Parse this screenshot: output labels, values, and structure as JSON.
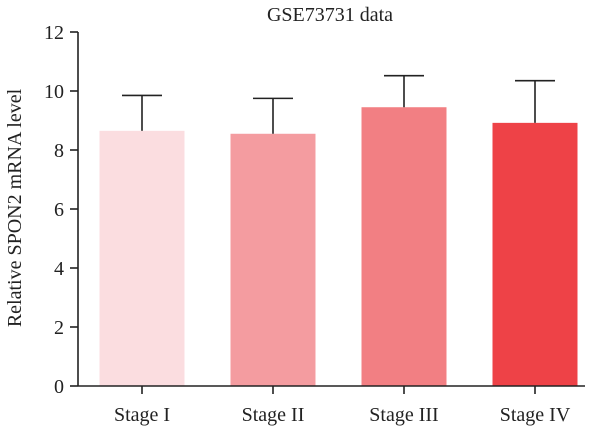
{
  "chart_data": {
    "type": "bar",
    "title": "GSE73731 data",
    "xlabel": "",
    "ylabel": "Relative SPON2 mRNA level",
    "categories": [
      "Stage I",
      "Stage II",
      "Stage III",
      "Stage IV"
    ],
    "values": [
      8.65,
      8.55,
      9.45,
      8.92
    ],
    "error_upper": [
      9.85,
      9.75,
      10.52,
      10.35
    ],
    "colors": [
      "#fbdde0",
      "#f49ca0",
      "#f27f83",
      "#ee4247"
    ],
    "ylim": [
      0,
      12
    ],
    "yticks": [
      0,
      2,
      4,
      6,
      8,
      10,
      12
    ],
    "grid": false,
    "legend": "none"
  }
}
